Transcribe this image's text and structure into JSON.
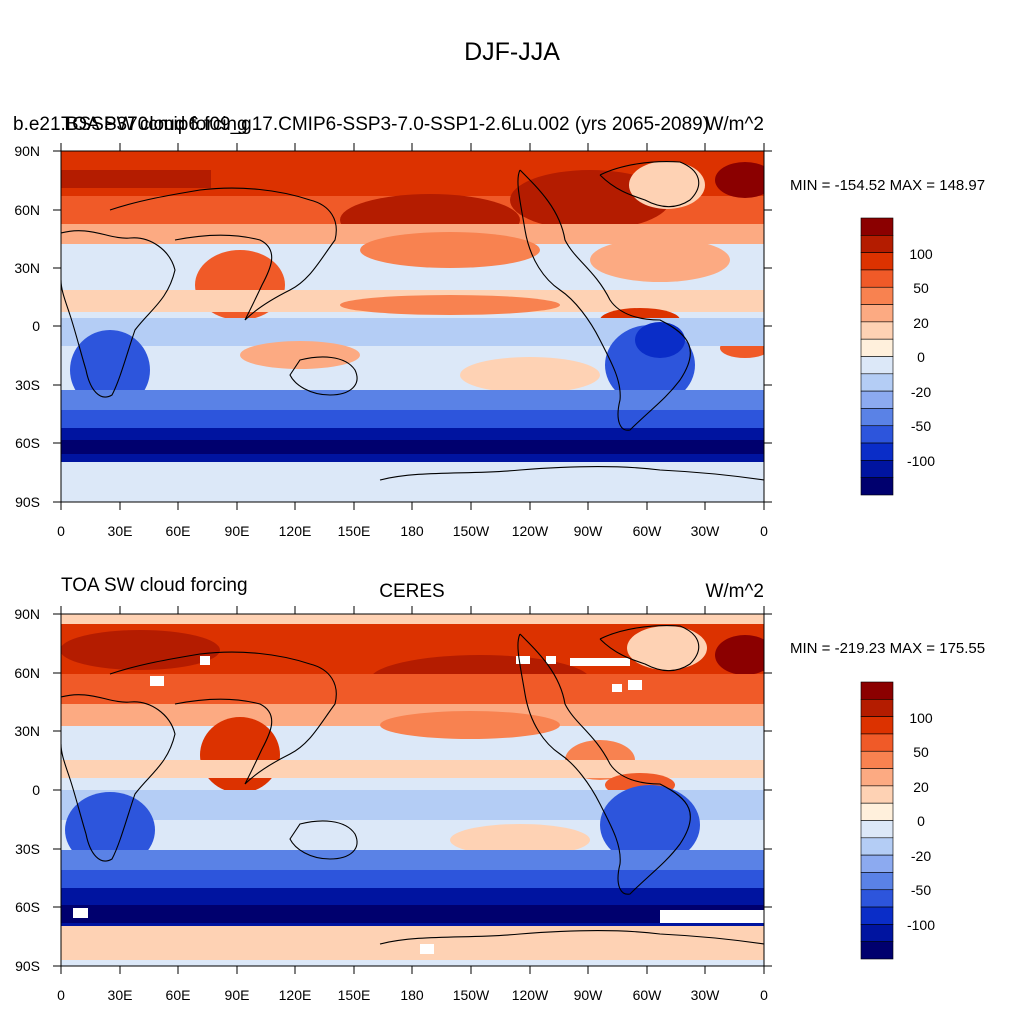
{
  "main_title": "DJF-JJA",
  "panels": [
    {
      "left_title": "TOA SW cloud forcing",
      "case_title": "b.e21.BSSP370cmip6.f09_g17.CMIP6-SSP3-7.0-SSP1-2.6Lu.002 (yrs 2065-2089)",
      "center_title": "",
      "units": "W/m^2",
      "stats": "MIN = -154.52 MAX = 148.97",
      "colorbar_labels": [
        "100",
        "50",
        "20",
        "0",
        "-20",
        "-50",
        "-100"
      ]
    },
    {
      "left_title": "TOA SW cloud forcing",
      "center_title": "CERES",
      "units": "W/m^2",
      "stats": "MIN = -219.23 MAX = 175.55",
      "colorbar_labels": [
        "100",
        "50",
        "20",
        "0",
        "-20",
        "-50",
        "-100"
      ]
    }
  ],
  "lat_labels": [
    "90N",
    "60N",
    "30N",
    "0",
    "30S",
    "60S",
    "90S"
  ],
  "lon_labels": [
    "0",
    "30E",
    "60E",
    "90E",
    "120E",
    "150E",
    "180",
    "150W",
    "120W",
    "90W",
    "60W",
    "30W",
    "0"
  ],
  "colorbar_colors": [
    "#8b0000",
    "#b41c00",
    "#dc3200",
    "#f05a28",
    "#f88250",
    "#fcaa82",
    "#fed2b4",
    "#fff0dc",
    "#dce8f8",
    "#b4cdf5",
    "#8caaf0",
    "#5a82e6",
    "#2d55dc",
    "#0a2dc8",
    "#0014a0",
    "#00006e"
  ],
  "map_colors": {
    "deep_red": "#b41c00",
    "red": "#dc3200",
    "orange": "#f05a28",
    "light_orange": "#fcaa82",
    "peach": "#fed2b4",
    "pale": "#fff0dc",
    "pale_blue": "#dce8f8",
    "light_blue": "#b4cdf5",
    "mid_blue": "#5a82e6",
    "blue": "#2d55dc",
    "deep_blue": "#0a2dc8",
    "navy": "#00006e"
  }
}
